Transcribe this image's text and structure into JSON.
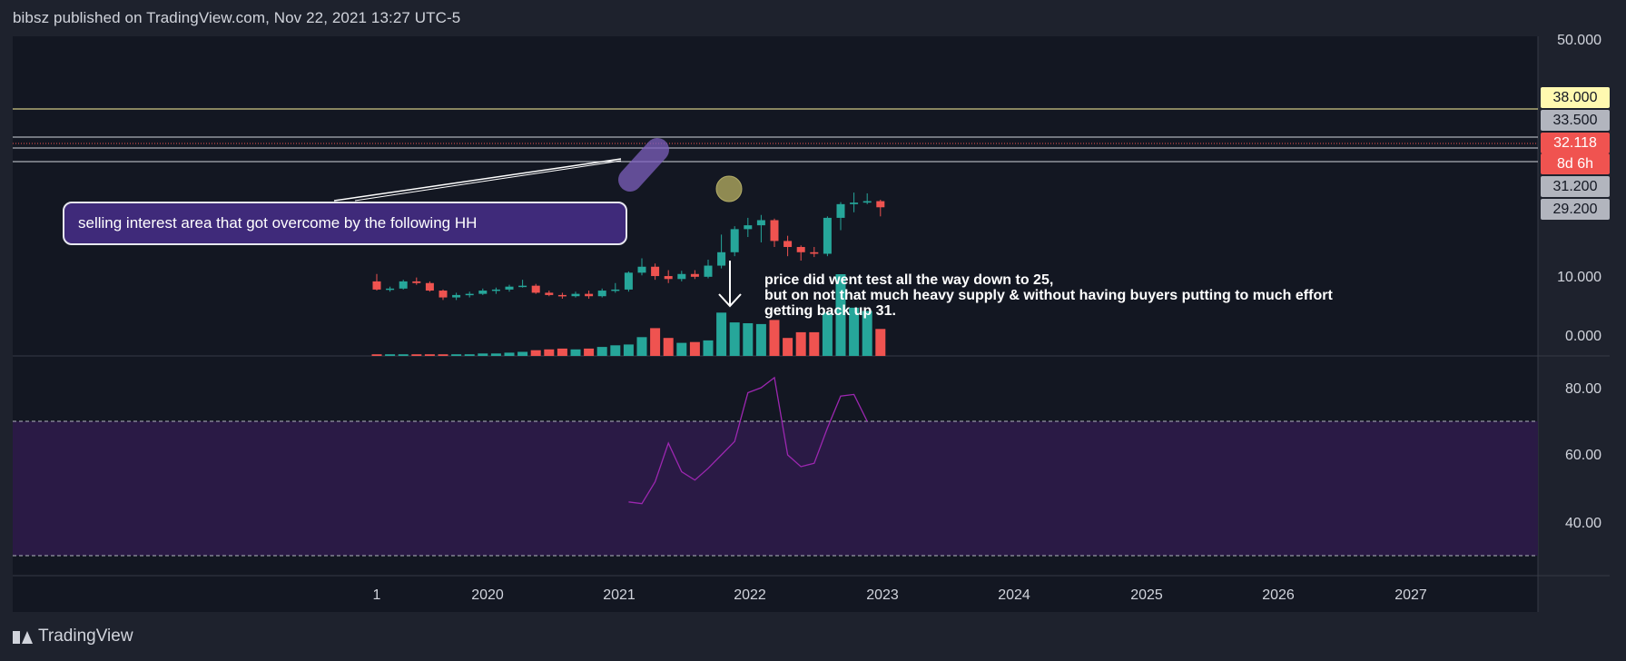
{
  "header": {
    "text": "bibsz published on TradingView.com, Nov 22, 2021 13:27 UTC-5"
  },
  "footer": {
    "logo_text": "TradingView"
  },
  "callout": {
    "text": "selling interest area that got overcome by the following HH"
  },
  "note": {
    "lines": [
      "price did went test all the way down to 25,",
      "but on not that much heavy supply & without having buyers putting to much effort",
      "getting back up 31."
    ]
  },
  "price_tags": [
    {
      "label": "38.000",
      "bg": "#fff9b0",
      "fg": "#131722"
    },
    {
      "label": "33.500",
      "bg": "#b2b5be",
      "fg": "#131722"
    },
    {
      "label": "32.118",
      "bg": "#f05350",
      "fg": "#ffffff"
    },
    {
      "label": "8d 6h",
      "bg": "#f05350",
      "fg": "#ffffff"
    },
    {
      "label": "31.200",
      "bg": "#b2b5be",
      "fg": "#131722"
    },
    {
      "label": "29.200",
      "bg": "#b2b5be",
      "fg": "#131722"
    }
  ],
  "colors": {
    "up": "#26a69a",
    "down": "#ef5350",
    "rsi": "#9c27b0",
    "rsi_band": "#2a1a45",
    "background": "#131722",
    "grid": "#2a2e39"
  },
  "chart_data": [
    {
      "type": "candlestick",
      "x_axis_ticks": [
        "1",
        "2020",
        "2021",
        "2022",
        "2023",
        "2024",
        "2025",
        "2026",
        "2027"
      ],
      "y_axis_ticks": [
        "50.000",
        "10.000",
        "0.000"
      ],
      "y_scale": "logarithmic",
      "horizontal_levels": [
        38.0,
        33.5,
        31.2,
        29.2
      ],
      "last_price": 32.118,
      "candles": [
        {
          "o": 3.6,
          "h": 4.6,
          "l": 2.6,
          "c": 2.7
        },
        {
          "o": 2.7,
          "h": 3.0,
          "l": 2.5,
          "c": 2.8
        },
        {
          "o": 2.8,
          "h": 3.8,
          "l": 2.7,
          "c": 3.6
        },
        {
          "o": 3.6,
          "h": 4.1,
          "l": 3.2,
          "c": 3.4
        },
        {
          "o": 3.4,
          "h": 3.6,
          "l": 2.5,
          "c": 2.6
        },
        {
          "o": 2.6,
          "h": 2.7,
          "l": 1.8,
          "c": 2.0
        },
        {
          "o": 2.0,
          "h": 2.4,
          "l": 1.8,
          "c": 2.2
        },
        {
          "o": 2.2,
          "h": 2.5,
          "l": 2.0,
          "c": 2.3
        },
        {
          "o": 2.3,
          "h": 2.8,
          "l": 2.2,
          "c": 2.6
        },
        {
          "o": 2.6,
          "h": 2.9,
          "l": 2.3,
          "c": 2.7
        },
        {
          "o": 2.7,
          "h": 3.2,
          "l": 2.5,
          "c": 3.0
        },
        {
          "o": 3.0,
          "h": 3.8,
          "l": 2.9,
          "c": 3.1
        },
        {
          "o": 3.1,
          "h": 3.3,
          "l": 2.3,
          "c": 2.4
        },
        {
          "o": 2.4,
          "h": 2.6,
          "l": 2.1,
          "c": 2.2
        },
        {
          "o": 2.2,
          "h": 2.4,
          "l": 1.9,
          "c": 2.1
        },
        {
          "o": 2.1,
          "h": 2.5,
          "l": 2.0,
          "c": 2.3
        },
        {
          "o": 2.3,
          "h": 2.6,
          "l": 1.9,
          "c": 2.1
        },
        {
          "o": 2.1,
          "h": 2.8,
          "l": 2.0,
          "c": 2.6
        },
        {
          "o": 2.6,
          "h": 3.4,
          "l": 2.4,
          "c": 2.7
        },
        {
          "o": 2.7,
          "h": 5.0,
          "l": 2.5,
          "c": 4.8
        },
        {
          "o": 4.8,
          "h": 7.5,
          "l": 4.4,
          "c": 5.8
        },
        {
          "o": 5.8,
          "h": 6.4,
          "l": 3.8,
          "c": 4.3
        },
        {
          "o": 4.3,
          "h": 5.2,
          "l": 3.4,
          "c": 3.9
        },
        {
          "o": 3.9,
          "h": 5.1,
          "l": 3.6,
          "c": 4.6
        },
        {
          "o": 4.6,
          "h": 5.2,
          "l": 3.9,
          "c": 4.2
        },
        {
          "o": 4.2,
          "h": 7.2,
          "l": 4.0,
          "c": 6.0
        },
        {
          "o": 6.0,
          "h": 15.0,
          "l": 5.5,
          "c": 9.0
        },
        {
          "o": 9.0,
          "h": 19.0,
          "l": 8.0,
          "c": 17.5
        },
        {
          "o": 17.5,
          "h": 24.0,
          "l": 14.0,
          "c": 19.5
        },
        {
          "o": 19.5,
          "h": 26.0,
          "l": 12.0,
          "c": 22.5
        },
        {
          "o": 22.5,
          "h": 23.5,
          "l": 10.5,
          "c": 12.5
        },
        {
          "o": 12.5,
          "h": 14.5,
          "l": 8.0,
          "c": 10.5
        },
        {
          "o": 10.5,
          "h": 11.0,
          "l": 7.0,
          "c": 9.0
        },
        {
          "o": 9.0,
          "h": 10.5,
          "l": 7.8,
          "c": 8.6
        },
        {
          "o": 8.6,
          "h": 25.0,
          "l": 8.0,
          "c": 24.0
        },
        {
          "o": 24.0,
          "h": 37.0,
          "l": 17.0,
          "c": 35.0
        },
        {
          "o": 35.0,
          "h": 48.0,
          "l": 28.0,
          "c": 36.5
        },
        {
          "o": 36.5,
          "h": 47.0,
          "l": 35.0,
          "c": 38.0
        },
        {
          "o": 38.0,
          "h": 39.5,
          "l": 25.0,
          "c": 32.118
        }
      ],
      "volume": [
        0.02,
        0.02,
        0.02,
        0.02,
        0.02,
        0.02,
        0.02,
        0.02,
        0.03,
        0.03,
        0.04,
        0.05,
        0.07,
        0.08,
        0.09,
        0.08,
        0.09,
        0.11,
        0.13,
        0.14,
        0.23,
        0.34,
        0.22,
        0.16,
        0.17,
        0.19,
        0.53,
        0.41,
        0.4,
        0.39,
        0.44,
        0.22,
        0.29,
        0.29,
        0.53,
        1.0,
        0.59,
        0.55,
        0.33
      ]
    },
    {
      "type": "line",
      "name": "RSI",
      "y_axis_ticks": [
        "80.00",
        "60.00",
        "40.00"
      ],
      "ylim": [
        26,
        89
      ],
      "bands": [
        70,
        30
      ],
      "start_index": 19,
      "values": [
        46.0,
        45.5,
        52.0,
        63.5,
        55.0,
        52.5,
        56.0,
        60.0,
        64.0,
        78.5,
        80.0,
        83.0,
        60.0,
        56.5,
        57.5,
        68.0,
        77.5,
        78.0,
        70.0
      ]
    }
  ]
}
